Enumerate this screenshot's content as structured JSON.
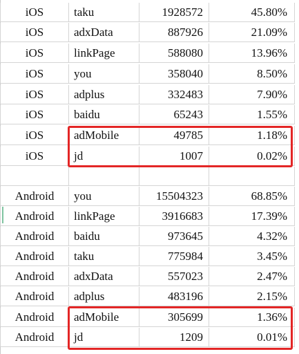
{
  "ios_rows": [
    {
      "platform": "iOS",
      "name": "taku",
      "count": "1928572",
      "pct": "45.80%"
    },
    {
      "platform": "iOS",
      "name": "adxData",
      "count": "887926",
      "pct": "21.09%"
    },
    {
      "platform": "iOS",
      "name": "linkPage",
      "count": "588080",
      "pct": "13.96%"
    },
    {
      "platform": "iOS",
      "name": "you",
      "count": "358040",
      "pct": "8.50%"
    },
    {
      "platform": "iOS",
      "name": "adplus",
      "count": "332483",
      "pct": "7.90%"
    },
    {
      "platform": "iOS",
      "name": "baidu",
      "count": "65243",
      "pct": "1.55%"
    },
    {
      "platform": "iOS",
      "name": "adMobile",
      "count": "49785",
      "pct": "1.18%"
    },
    {
      "platform": "iOS",
      "name": "jd",
      "count": "1007",
      "pct": "0.02%"
    }
  ],
  "android_rows": [
    {
      "platform": "Android",
      "name": "you",
      "count": "15504323",
      "pct": "68.85%"
    },
    {
      "platform": "Android",
      "name": "linkPage",
      "count": "3916683",
      "pct": "17.39%"
    },
    {
      "platform": "Android",
      "name": "baidu",
      "count": "973645",
      "pct": "4.32%"
    },
    {
      "platform": "Android",
      "name": "taku",
      "count": "775984",
      "pct": "3.45%"
    },
    {
      "platform": "Android",
      "name": "adxData",
      "count": "557023",
      "pct": "2.47%"
    },
    {
      "platform": "Android",
      "name": "adplus",
      "count": "483196",
      "pct": "2.15%"
    },
    {
      "platform": "Android",
      "name": "adMobile",
      "count": "305699",
      "pct": "1.36%"
    },
    {
      "platform": "Android",
      "name": "jd",
      "count": "1209",
      "pct": "0.01%"
    }
  ],
  "highlight_color": "#e32626"
}
